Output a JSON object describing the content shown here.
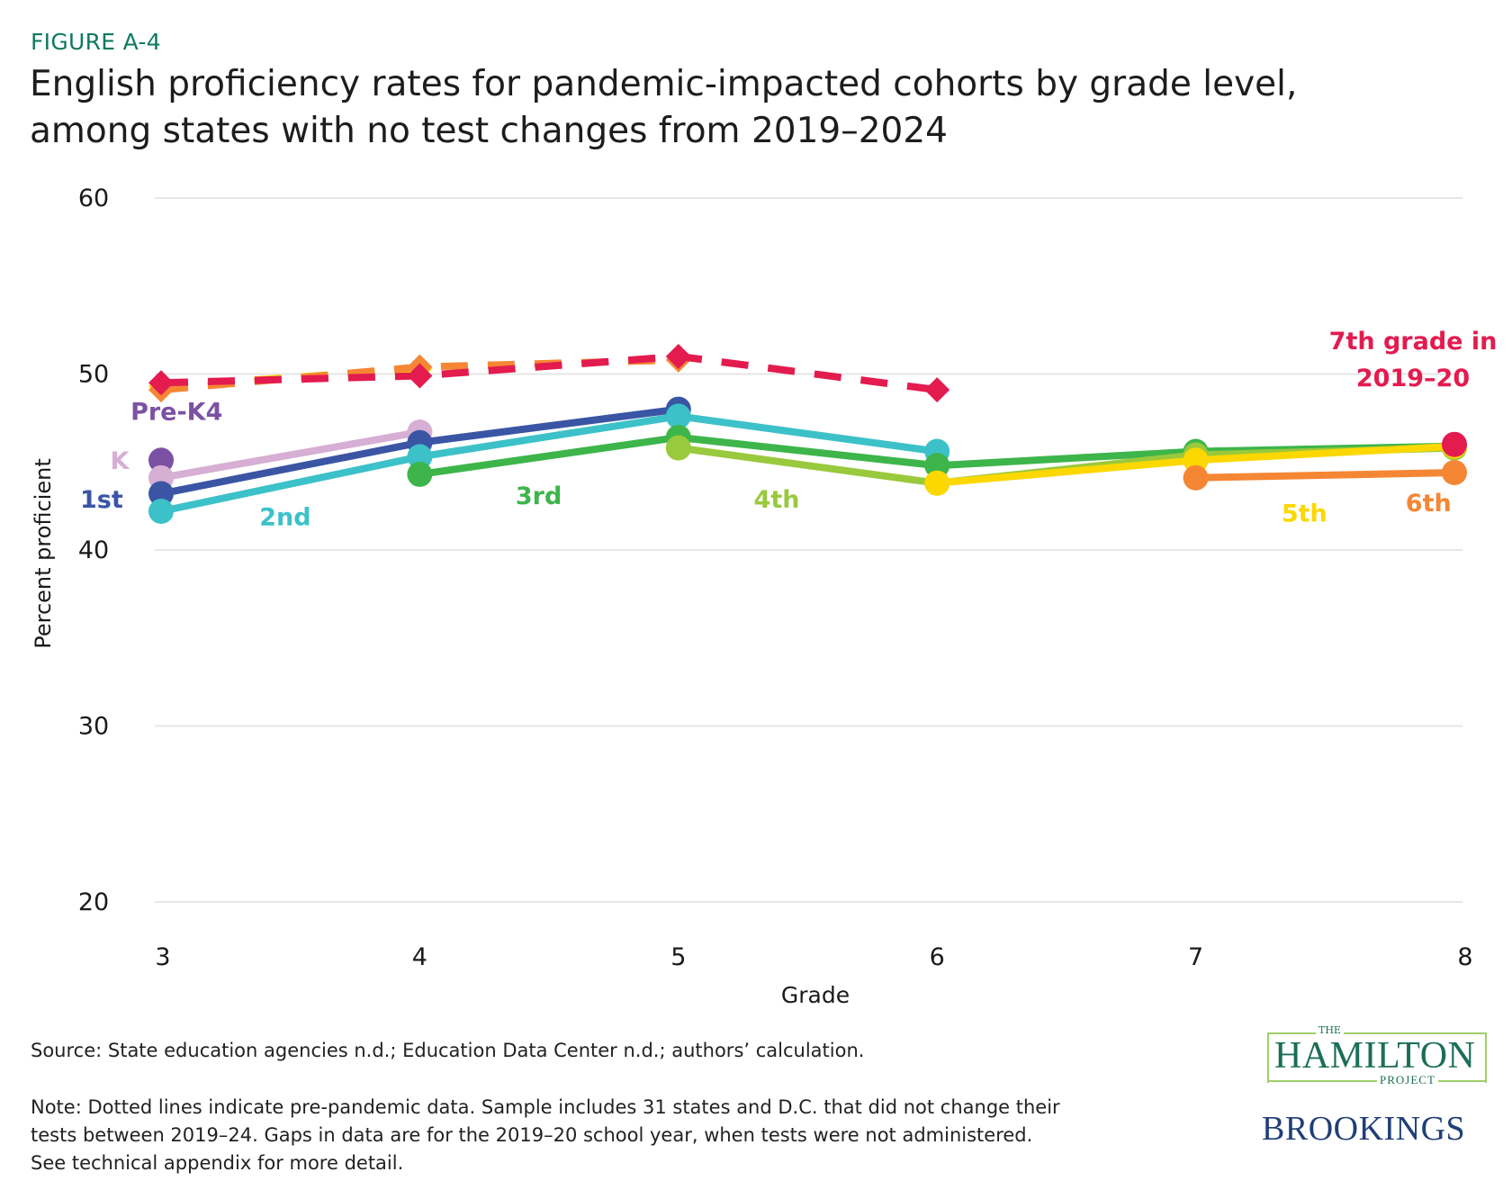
{
  "figure_label": "FIGURE A-4",
  "title_line1": "English proficiency rates for pandemic-impacted cohorts by grade level,",
  "title_line2": "among states with no test changes from 2019–2024",
  "source": "Source: State education agencies n.d.; Education Data Center n.d.; authors’ calculation.",
  "note_lines": [
    "Note: Dotted lines indicate pre-pandemic data. Sample includes 31 states and D.C. that did not change their",
    "tests between 2019–24. Gaps in data are for the 2019–20 school year, when tests were not administered.",
    "See technical appendix for more detail."
  ],
  "logos": {
    "hamilton_the": "THE",
    "hamilton_main": "HAMILTON",
    "hamilton_project": "PROJECT",
    "brookings": "BROOKINGS"
  },
  "chart_data": {
    "type": "line",
    "title": "English proficiency rates for pandemic-impacted cohorts by grade level, among states with no test changes from 2019–2024",
    "xlabel": "Grade",
    "ylabel": "Percent proficient",
    "x": [
      3,
      4,
      5,
      6,
      7,
      8
    ],
    "xticks": [
      "3",
      "4",
      "5",
      "6",
      "7",
      "8"
    ],
    "yticks": [
      "20",
      "30",
      "40",
      "50",
      "60"
    ],
    "ylim": [
      20,
      60
    ],
    "xlim": [
      3,
      8
    ],
    "grid": "horizontal",
    "series": [
      {
        "name": "Pre-K4",
        "label": "Pre-K4",
        "color": "#7b52a3",
        "dashed": false,
        "points": [
          [
            3,
            45.1
          ]
        ]
      },
      {
        "name": "K",
        "label": "K",
        "color": "#d7aed4",
        "dashed": false,
        "points": [
          [
            3,
            44.1
          ],
          [
            4,
            46.7
          ]
        ]
      },
      {
        "name": "1st",
        "label": "1st",
        "color": "#3a55a4",
        "dashed": false,
        "points": [
          [
            3,
            43.2
          ],
          [
            4,
            46.1
          ],
          [
            5,
            48.0
          ]
        ]
      },
      {
        "name": "2nd",
        "label": "2nd",
        "color": "#3cc1c9",
        "dashed": false,
        "points": [
          [
            3,
            42.2
          ],
          [
            4,
            45.3
          ],
          [
            5,
            47.6
          ],
          [
            6,
            45.6
          ]
        ]
      },
      {
        "name": "3rd",
        "label": "3rd",
        "color": "#3db54a",
        "dashed": false,
        "points": [
          [
            4,
            44.3
          ],
          [
            5,
            46.4
          ],
          [
            6,
            44.8
          ],
          [
            7,
            45.6
          ],
          [
            8,
            45.9
          ]
        ]
      },
      {
        "name": "4th",
        "label": "4th",
        "color": "#99c93c",
        "dashed": false,
        "points": [
          [
            5,
            45.8
          ],
          [
            6,
            43.8
          ],
          [
            7,
            45.4
          ],
          [
            8,
            45.8
          ]
        ]
      },
      {
        "name": "5th",
        "label": "5th",
        "color": "#fcd700",
        "dashed": false,
        "points": [
          [
            6,
            43.8
          ],
          [
            7,
            45.1
          ],
          [
            8,
            45.9
          ]
        ]
      },
      {
        "name": "6th",
        "label": "6th",
        "color": "#f58634",
        "dashed": false,
        "points": [
          [
            7,
            44.1
          ],
          [
            8,
            44.4
          ]
        ]
      },
      {
        "name": "7th grade in 2019-20",
        "label": "7th grade in 2019–20",
        "color": "#e31b4f",
        "dashed": false,
        "points": [
          [
            8,
            46.0
          ]
        ]
      },
      {
        "name": "5th (pre-pandemic)",
        "color": "#fcd700",
        "dashed": true,
        "marker": "diamond",
        "points": [
          [
            3,
            49.3
          ],
          [
            4,
            50.3
          ]
        ]
      },
      {
        "name": "6th (pre-pandemic)",
        "color": "#f58634",
        "dashed": true,
        "marker": "diamond",
        "points": [
          [
            3,
            49.1
          ],
          [
            4,
            50.4
          ],
          [
            5,
            50.8
          ]
        ]
      },
      {
        "name": "7th (pre-pandemic)",
        "color": "#e31b4f",
        "dashed": true,
        "marker": "diamond",
        "points": [
          [
            3,
            49.5
          ],
          [
            4,
            49.9
          ],
          [
            5,
            51.0
          ],
          [
            6,
            49.1
          ]
        ]
      }
    ],
    "annotations": [
      {
        "text": "Pre-K4",
        "color": "#7b52a3",
        "x": 3.06,
        "y": 47.4
      },
      {
        "text": "K",
        "color": "#d7aed4",
        "x": 2.84,
        "y": 44.6
      },
      {
        "text": "1st",
        "color": "#3a55a4",
        "x": 2.77,
        "y": 42.4
      },
      {
        "text": "2nd",
        "color": "#3cc1c9",
        "x": 3.48,
        "y": 41.4
      },
      {
        "text": "3rd",
        "color": "#3db54a",
        "x": 4.46,
        "y": 42.6
      },
      {
        "text": "4th",
        "color": "#99c93c",
        "x": 5.38,
        "y": 42.4
      },
      {
        "text": "5th",
        "color": "#fcd700",
        "x": 7.42,
        "y": 41.6
      },
      {
        "text": "6th",
        "color": "#f58634",
        "x": 7.9,
        "y": 42.2
      },
      {
        "text": "7th grade in",
        "color": "#e31b4f",
        "x": 7.84,
        "y": 51.4
      },
      {
        "text": "2019–20",
        "color": "#e31b4f",
        "x": 7.84,
        "y": 49.3
      }
    ]
  }
}
